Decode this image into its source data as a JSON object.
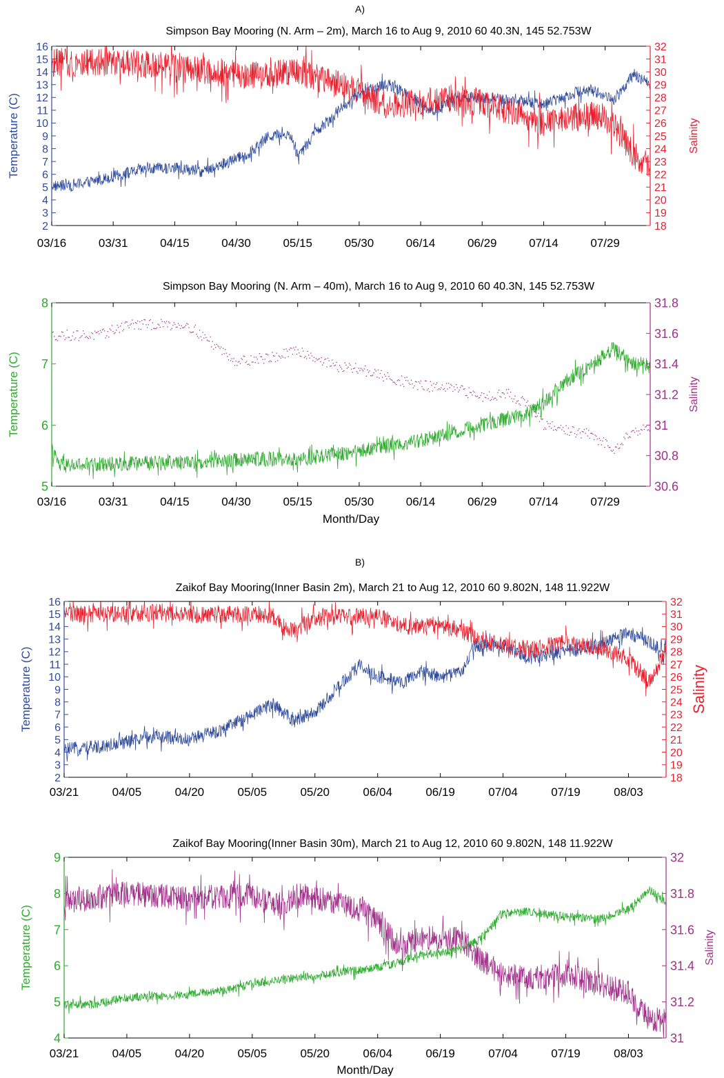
{
  "figure": {
    "section_a": "A)",
    "section_b": "B)"
  },
  "colors": {
    "blue": "#2e4a9a",
    "red": "#e8202e",
    "green": "#2eaa2e",
    "magenta": "#a0308a",
    "axis": "#000000"
  },
  "chart_data": [
    {
      "type": "line",
      "title": "Simpson Bay Mooring (N. Arm – 2m), March 16 to Aug 9, 2010 60 40.3N, 145 52.753W",
      "xlabel": "",
      "ylabel": "Temperature (C)",
      "y2label": "Salinity",
      "ylim": [
        2,
        16
      ],
      "y2lim": [
        18,
        32
      ],
      "yticks": [
        "2",
        "3",
        "4",
        "5",
        "6",
        "7",
        "8",
        "9",
        "10",
        "11",
        "12",
        "13",
        "14",
        "15",
        "16"
      ],
      "y2ticks": [
        "18",
        "19",
        "20",
        "21",
        "22",
        "23",
        "24",
        "25",
        "26",
        "27",
        "28",
        "29",
        "30",
        "31",
        "32"
      ],
      "x_start": "03/16",
      "x_end": "08/09",
      "xticks": [
        "03/16",
        "03/31",
        "04/15",
        "04/30",
        "05/15",
        "05/30",
        "06/14",
        "06/29",
        "07/14",
        "07/29"
      ],
      "series": [
        {
          "axis": "left",
          "color_key": "blue",
          "style": "line",
          "x": [
            "03/16",
            "03/20",
            "03/25",
            "04/01",
            "04/08",
            "04/15",
            "04/22",
            "04/29",
            "05/03",
            "05/08",
            "05/13",
            "05/15",
            "05/20",
            "05/25",
            "05/30",
            "06/05",
            "06/10",
            "06/17",
            "06/22",
            "06/29",
            "07/05",
            "07/14",
            "07/20",
            "07/25",
            "07/31",
            "08/05",
            "08/09"
          ],
          "values": [
            5.1,
            5.1,
            5.4,
            5.9,
            6.4,
            6.5,
            6.2,
            7.1,
            7.6,
            9.0,
            9.2,
            7.5,
            9.5,
            11.0,
            12.2,
            13.0,
            12.5,
            10.8,
            12.0,
            12.0,
            11.8,
            11.5,
            12.2,
            12.7,
            11.8,
            13.8,
            13.0
          ],
          "noise": 0.45
        },
        {
          "axis": "right",
          "color_key": "red",
          "style": "line",
          "x": [
            "03/16",
            "03/25",
            "04/05",
            "04/15",
            "04/25",
            "05/05",
            "05/15",
            "05/22",
            "05/30",
            "06/05",
            "06/14",
            "06/20",
            "06/29",
            "07/05",
            "07/14",
            "07/20",
            "07/27",
            "08/01",
            "08/05",
            "08/09"
          ],
          "values": [
            30.8,
            30.7,
            30.7,
            30.3,
            30.0,
            29.7,
            30.0,
            29.3,
            28.5,
            27.5,
            27.5,
            28.0,
            27.6,
            27.0,
            26.0,
            26.4,
            26.6,
            25.5,
            23.5,
            22.5
          ],
          "noise": 1.1
        }
      ]
    },
    {
      "type": "scatter",
      "title": "Simpson Bay Mooring (N. Arm – 40m), March 16 to Aug 9, 2010 60 40.3N, 145 52.753W",
      "xlabel": "Month/Day",
      "ylabel": "Temperature (C)",
      "y2label": "Salinity",
      "ylim": [
        5,
        8
      ],
      "y2lim": [
        30.6,
        31.8
      ],
      "yticks": [
        "5",
        "6",
        "7",
        "8"
      ],
      "y2ticks": [
        "30.6",
        "30.8",
        "31",
        "31.2",
        "31.4",
        "31.6",
        "31.8"
      ],
      "x_start": "03/16",
      "x_end": "08/09",
      "xticks": [
        "03/16",
        "03/31",
        "04/15",
        "04/30",
        "05/15",
        "05/30",
        "06/14",
        "06/29",
        "07/14",
        "07/29"
      ],
      "series": [
        {
          "axis": "left",
          "color_key": "green",
          "style": "line",
          "x": [
            "03/16",
            "03/18",
            "03/31",
            "04/25",
            "05/05",
            "05/15",
            "05/30",
            "06/14",
            "06/29",
            "07/10",
            "07/14",
            "07/20",
            "07/25",
            "07/31",
            "08/05",
            "08/09"
          ],
          "values": [
            5.6,
            5.33,
            5.37,
            5.4,
            5.45,
            5.43,
            5.58,
            5.75,
            6.0,
            6.2,
            6.35,
            6.75,
            6.95,
            7.25,
            7.0,
            7.0
          ],
          "noise": 0.12
        },
        {
          "axis": "right",
          "color_key": "magenta",
          "style": "dots",
          "x": [
            "03/16",
            "03/28",
            "04/03",
            "04/18",
            "04/25",
            "04/30",
            "05/10",
            "05/15",
            "05/25",
            "05/30",
            "06/05",
            "06/14",
            "06/22",
            "06/29",
            "07/05",
            "07/10",
            "07/14",
            "07/25",
            "07/31",
            "08/05",
            "08/09"
          ],
          "values": [
            31.59,
            31.59,
            31.66,
            31.66,
            31.52,
            31.42,
            31.45,
            31.49,
            31.38,
            31.37,
            31.32,
            31.26,
            31.24,
            31.19,
            31.21,
            31.14,
            31.0,
            30.94,
            30.85,
            30.97,
            30.98
          ],
          "noise": 0.035
        }
      ]
    },
    {
      "type": "line",
      "title": "Zaikof Bay Mooring(Inner Basin 2m), March 21 to Aug 12, 2010 60 9.802N, 148 11.922W",
      "xlabel": "",
      "ylabel": "Temperature (C)",
      "y2label": "Salinity",
      "ylim": [
        2,
        16
      ],
      "y2lim": [
        18,
        32
      ],
      "yticks": [
        "2",
        "3",
        "4",
        "5",
        "6",
        "7",
        "8",
        "9",
        "10",
        "11",
        "12",
        "13",
        "14",
        "15",
        "16"
      ],
      "y2ticks": [
        "18",
        "19",
        "20",
        "21",
        "22",
        "23",
        "24",
        "25",
        "26",
        "27",
        "28",
        "29",
        "30",
        "31",
        "32"
      ],
      "x_start": "03/21",
      "x_end": "08/12",
      "xticks": [
        "03/21",
        "04/05",
        "04/20",
        "05/05",
        "05/20",
        "06/04",
        "06/19",
        "07/04",
        "07/19",
        "08/03"
      ],
      "series": [
        {
          "axis": "left",
          "color_key": "blue",
          "style": "line",
          "x": [
            "03/21",
            "03/28",
            "04/05",
            "04/12",
            "04/20",
            "04/28",
            "05/05",
            "05/10",
            "05/15",
            "05/20",
            "05/25",
            "05/31",
            "06/04",
            "06/10",
            "06/14",
            "06/19",
            "06/24",
            "06/27",
            "07/04",
            "07/10",
            "07/19",
            "07/27",
            "08/03",
            "08/08",
            "08/12"
          ],
          "values": [
            4.2,
            4.4,
            4.8,
            5.3,
            5.0,
            5.8,
            7.0,
            7.8,
            6.5,
            7.2,
            9.0,
            11.0,
            10.0,
            9.5,
            10.5,
            10.0,
            10.3,
            12.5,
            12.5,
            11.5,
            12.0,
            12.5,
            13.5,
            12.7,
            12.0
          ],
          "noise": 0.55
        },
        {
          "axis": "right",
          "color_key": "red",
          "style": "line",
          "x": [
            "03/21",
            "04/05",
            "04/15",
            "04/20",
            "05/05",
            "05/10",
            "05/14",
            "05/20",
            "06/04",
            "06/10",
            "06/19",
            "06/24",
            "06/28",
            "07/04",
            "07/10",
            "07/19",
            "07/27",
            "08/03",
            "08/08",
            "08/12"
          ],
          "values": [
            31.0,
            31.0,
            31.2,
            30.9,
            31.0,
            30.8,
            29.5,
            30.7,
            30.8,
            30.0,
            30.0,
            29.7,
            29.0,
            28.5,
            28.2,
            28.7,
            28.3,
            27.5,
            25.5,
            28.0
          ],
          "noise": 0.7
        }
      ]
    },
    {
      "type": "line",
      "title": "Zaikof Bay Mooring(Inner Basin 30m), March 21 to Aug 12, 2010 60 9.802N, 148 11.922W",
      "xlabel": "Month/Day",
      "ylabel": "Temperature (C)",
      "y2label": "Salinity",
      "ylim": [
        4,
        9
      ],
      "y2lim": [
        31,
        32
      ],
      "yticks": [
        "4",
        "5",
        "6",
        "7",
        "8",
        "9"
      ],
      "y2ticks": [
        "31",
        "31.2",
        "31.4",
        "31.6",
        "31.8",
        "32"
      ],
      "x_start": "03/21",
      "x_end": "08/12",
      "xticks": [
        "03/21",
        "04/05",
        "04/20",
        "05/05",
        "05/20",
        "06/04",
        "06/19",
        "07/04",
        "07/19",
        "08/03"
      ],
      "series": [
        {
          "axis": "left",
          "color_key": "green",
          "style": "line",
          "x": [
            "03/21",
            "03/28",
            "04/05",
            "04/20",
            "04/30",
            "05/05",
            "05/15",
            "05/20",
            "06/04",
            "06/08",
            "06/14",
            "06/19",
            "06/24",
            "06/28",
            "07/04",
            "07/10",
            "07/19",
            "07/27",
            "08/03",
            "08/08",
            "08/12"
          ],
          "values": [
            4.92,
            4.93,
            5.12,
            5.2,
            5.35,
            5.5,
            5.65,
            5.72,
            5.95,
            6.05,
            6.3,
            6.35,
            6.45,
            6.7,
            7.45,
            7.5,
            7.35,
            7.3,
            7.55,
            8.1,
            7.75
          ],
          "noise": 0.12
        },
        {
          "axis": "right",
          "color_key": "magenta",
          "style": "line",
          "x": [
            "03/21",
            "04/05",
            "04/20",
            "05/05",
            "05/12",
            "05/15",
            "05/20",
            "05/30",
            "06/04",
            "06/09",
            "06/14",
            "06/19",
            "06/24",
            "06/28",
            "07/04",
            "07/10",
            "07/19",
            "07/27",
            "08/03",
            "08/08",
            "08/12"
          ],
          "values": [
            31.75,
            31.8,
            31.77,
            31.79,
            31.72,
            31.79,
            31.78,
            31.72,
            31.65,
            31.5,
            31.55,
            31.55,
            31.55,
            31.45,
            31.35,
            31.33,
            31.35,
            31.3,
            31.25,
            31.1,
            31.1
          ],
          "noise": 0.07
        }
      ]
    }
  ]
}
